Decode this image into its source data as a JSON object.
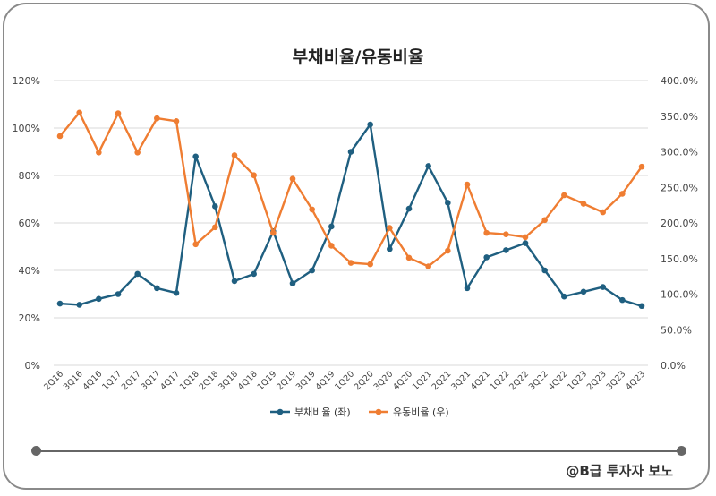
{
  "chart_data": {
    "type": "line",
    "title": "부채비율/유동비율",
    "categories": [
      "2Q16",
      "3Q16",
      "4Q16",
      "1Q17",
      "2Q17",
      "3Q17",
      "4Q17",
      "1Q18",
      "2Q18",
      "3Q18",
      "4Q18",
      "1Q19",
      "2Q19",
      "3Q19",
      "4Q19",
      "1Q20",
      "2Q20",
      "3Q20",
      "4Q20",
      "1Q21",
      "2Q21",
      "3Q21",
      "4Q21",
      "1Q22",
      "2Q22",
      "3Q22",
      "4Q22",
      "1Q23",
      "2Q23",
      "3Q23",
      "4Q23"
    ],
    "series": [
      {
        "name": "부채비율 (좌)",
        "axis": "left",
        "color": "#1f5f80",
        "values": [
          26,
          25.5,
          28,
          30,
          38.5,
          32.5,
          30.5,
          88,
          67,
          35.5,
          38.5,
          56.5,
          34.5,
          40,
          58.5,
          90,
          101.5,
          49,
          66,
          84,
          68.5,
          32.5,
          45.5,
          48.5,
          51.5,
          40,
          29,
          31,
          33,
          27.5,
          25
        ]
      },
      {
        "name": "유동비율 (우)",
        "axis": "right",
        "color": "#ef7d32",
        "values": [
          322,
          355,
          299,
          354,
          299,
          347,
          343,
          170,
          194,
          295,
          267,
          186,
          262,
          219,
          168,
          144,
          142,
          193,
          151,
          139,
          161,
          254,
          186,
          184,
          180,
          204,
          239,
          227,
          215,
          241,
          279
        ]
      }
    ],
    "left_axis": {
      "ticks": [
        "0%",
        "20%",
        "40%",
        "60%",
        "80%",
        "100%",
        "120%"
      ],
      "ylim": [
        0,
        120
      ]
    },
    "right_axis": {
      "ticks": [
        "0.0%",
        "50.0%",
        "100.0%",
        "150.0%",
        "200.0%",
        "250.0%",
        "300.0%",
        "350.0%",
        "400.0%"
      ],
      "ylim": [
        0,
        400
      ]
    },
    "grid": true,
    "legend_position": "bottom"
  },
  "footer": {
    "credit": "@B급 투자자 보노"
  }
}
